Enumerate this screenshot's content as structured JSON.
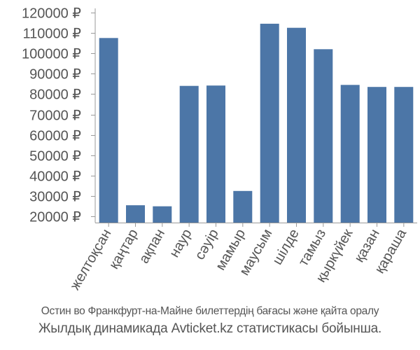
{
  "chart_data": {
    "type": "bar",
    "categories": [
      "желтоқсан",
      "қаңтар",
      "ақпан",
      "наур",
      "сәуір",
      "мамыр",
      "маусым",
      "шілде",
      "тамыз",
      "қыркүйек",
      "қазан",
      "қараша"
    ],
    "series": [
      {
        "values": [
          107500,
          25500,
          25000,
          84000,
          84200,
          32500,
          114500,
          112500,
          102000,
          84500,
          83500,
          83500
        ]
      }
    ],
    "ylim": [
      17000,
      122000
    ],
    "yticks": [
      20000,
      30000,
      40000,
      50000,
      60000,
      70000,
      80000,
      90000,
      100000,
      110000,
      120000
    ],
    "tick_suffix": " ₽",
    "bar_color": "#4c76a7",
    "grid": false
  },
  "caption": {
    "line1": "Остин во Франкфурт-на-Майне билеттердің бағасы және қайта оралу",
    "line2": "Жылдық динамикада Avticket.kz статистикасы бойынша."
  }
}
